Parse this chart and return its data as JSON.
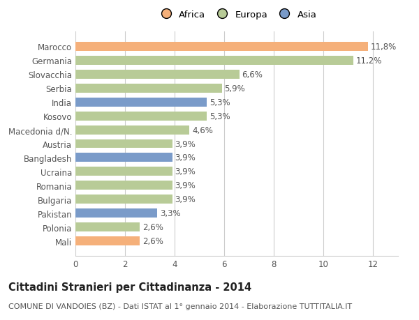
{
  "categories": [
    "Mali",
    "Polonia",
    "Pakistan",
    "Bulgaria",
    "Romania",
    "Ucraina",
    "Bangladesh",
    "Austria",
    "Macedonia d/N.",
    "Kosovo",
    "India",
    "Serbia",
    "Slovacchia",
    "Germania",
    "Marocco"
  ],
  "values": [
    2.6,
    2.6,
    3.3,
    3.9,
    3.9,
    3.9,
    3.9,
    3.9,
    4.6,
    5.3,
    5.3,
    5.9,
    6.6,
    11.2,
    11.8
  ],
  "labels": [
    "2,6%",
    "2,6%",
    "3,3%",
    "3,9%",
    "3,9%",
    "3,9%",
    "3,9%",
    "3,9%",
    "4,6%",
    "5,3%",
    "5,3%",
    "5,9%",
    "6,6%",
    "11,2%",
    "11,8%"
  ],
  "colors": [
    "#f5b07a",
    "#b8cb97",
    "#7a9bc9",
    "#b8cb97",
    "#b8cb97",
    "#b8cb97",
    "#7a9bc9",
    "#b8cb97",
    "#b8cb97",
    "#b8cb97",
    "#7a9bc9",
    "#b8cb97",
    "#b8cb97",
    "#b8cb97",
    "#f5b07a"
  ],
  "legend": [
    {
      "label": "Africa",
      "color": "#f5b07a"
    },
    {
      "label": "Europa",
      "color": "#b8cb97"
    },
    {
      "label": "Asia",
      "color": "#7a9bc9"
    }
  ],
  "xlim": [
    0,
    13
  ],
  "xticks": [
    0,
    2,
    4,
    6,
    8,
    10,
    12
  ],
  "title": "Cittadini Stranieri per Cittadinanza - 2014",
  "subtitle": "COMUNE DI VANDOIES (BZ) - Dati ISTAT al 1° gennaio 2014 - Elaborazione TUTTITALIA.IT",
  "bar_height": 0.65,
  "bg_color": "#ffffff",
  "grid_color": "#cccccc",
  "label_fontsize": 8.5,
  "tick_fontsize": 8.5,
  "title_fontsize": 10.5,
  "subtitle_fontsize": 8,
  "value_label_fontsize": 8.5
}
